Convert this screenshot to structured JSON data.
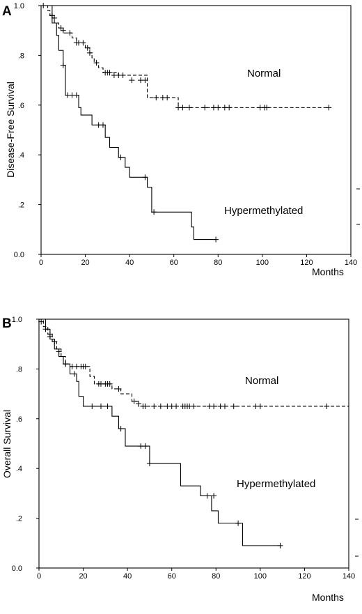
{
  "chart_data": [
    {
      "type": "line",
      "subtype": "kaplan-meier step",
      "panel_label": "A",
      "ylabel": "Disease-Free Survival",
      "xlabel": "Months",
      "xlim": [
        0,
        140
      ],
      "ylim": [
        0,
        1
      ],
      "xticks": [
        "0",
        "20",
        "40",
        "60",
        "80",
        "100",
        "120",
        "140"
      ],
      "yticks": [
        "0.0",
        ".2",
        ".4",
        ".6",
        ".8",
        "1.0"
      ],
      "grid": false,
      "series": [
        {
          "name": "Normal",
          "line_style": "dashed",
          "steps": [
            [
              0,
              1.0
            ],
            [
              3,
              0.98
            ],
            [
              4,
              0.96
            ],
            [
              5,
              0.95
            ],
            [
              6,
              0.93
            ],
            [
              8,
              0.91
            ],
            [
              10,
              0.89
            ],
            [
              14,
              0.87
            ],
            [
              16,
              0.85
            ],
            [
              20,
              0.83
            ],
            [
              22,
              0.81
            ],
            [
              23,
              0.79
            ],
            [
              24,
              0.77
            ],
            [
              26,
              0.75
            ],
            [
              28,
              0.73
            ],
            [
              35,
              0.72
            ],
            [
              48,
              0.63
            ],
            [
              62,
              0.59
            ],
            [
              130,
              0.59
            ]
          ],
          "censored": [
            [
              1,
              1.0
            ],
            [
              5,
              0.96
            ],
            [
              6,
              0.95
            ],
            [
              9,
              0.91
            ],
            [
              10,
              0.9
            ],
            [
              13,
              0.89
            ],
            [
              16,
              0.85
            ],
            [
              17,
              0.85
            ],
            [
              19,
              0.85
            ],
            [
              21,
              0.83
            ],
            [
              22,
              0.81
            ],
            [
              25,
              0.77
            ],
            [
              29,
              0.73
            ],
            [
              30,
              0.73
            ],
            [
              31,
              0.73
            ],
            [
              33,
              0.72
            ],
            [
              35,
              0.72
            ],
            [
              37,
              0.72
            ],
            [
              41,
              0.7
            ],
            [
              45,
              0.7
            ],
            [
              47,
              0.7
            ],
            [
              52,
              0.63
            ],
            [
              55,
              0.63
            ],
            [
              57,
              0.63
            ],
            [
              62,
              0.59
            ],
            [
              64,
              0.59
            ],
            [
              67,
              0.59
            ],
            [
              74,
              0.59
            ],
            [
              78,
              0.59
            ],
            [
              80,
              0.59
            ],
            [
              83,
              0.59
            ],
            [
              85,
              0.59
            ],
            [
              99,
              0.59
            ],
            [
              101,
              0.59
            ],
            [
              102,
              0.59
            ],
            [
              130,
              0.59
            ]
          ]
        },
        {
          "name": "Hypermethylated",
          "line_style": "solid",
          "steps": [
            [
              0,
              1.0
            ],
            [
              5,
              0.93
            ],
            [
              7,
              0.88
            ],
            [
              8,
              0.82
            ],
            [
              10,
              0.76
            ],
            [
              11,
              0.64
            ],
            [
              17,
              0.59
            ],
            [
              18,
              0.56
            ],
            [
              23,
              0.52
            ],
            [
              27,
              0.52
            ],
            [
              29,
              0.47
            ],
            [
              31,
              0.43
            ],
            [
              35,
              0.39
            ],
            [
              38,
              0.35
            ],
            [
              40,
              0.31
            ],
            [
              48,
              0.27
            ],
            [
              50,
              0.17
            ],
            [
              68,
              0.11
            ],
            [
              69,
              0.06
            ],
            [
              79,
              0.06
            ]
          ],
          "censored": [
            [
              5,
              0.96
            ],
            [
              10,
              0.76
            ],
            [
              12,
              0.64
            ],
            [
              14,
              0.64
            ],
            [
              16,
              0.64
            ],
            [
              26,
              0.52
            ],
            [
              28,
              0.52
            ],
            [
              36,
              0.39
            ],
            [
              47,
              0.31
            ],
            [
              51,
              0.17
            ],
            [
              79,
              0.06
            ]
          ]
        }
      ],
      "annotations": [
        "Normal",
        "Hypermethylated"
      ]
    },
    {
      "type": "line",
      "subtype": "kaplan-meier step",
      "panel_label": "B",
      "ylabel": "Overall Survival",
      "xlabel": "Months",
      "xlim": [
        0,
        140
      ],
      "ylim": [
        0,
        1
      ],
      "xticks": [
        "0",
        "20",
        "40",
        "60",
        "80",
        "100",
        "120",
        "140"
      ],
      "yticks": [
        "0.0",
        ".2",
        ".4",
        ".6",
        ".8",
        "1.0"
      ],
      "grid": false,
      "series": [
        {
          "name": "Normal",
          "line_style": "dashed",
          "steps": [
            [
              0,
              1.0
            ],
            [
              2,
              0.97
            ],
            [
              4,
              0.94
            ],
            [
              6,
              0.91
            ],
            [
              8,
              0.88
            ],
            [
              10,
              0.85
            ],
            [
              12,
              0.82
            ],
            [
              14,
              0.81
            ],
            [
              23,
              0.77
            ],
            [
              25,
              0.74
            ],
            [
              33,
              0.72
            ],
            [
              37,
              0.7
            ],
            [
              42,
              0.67
            ],
            [
              45,
              0.65
            ],
            [
              140,
              0.65
            ]
          ],
          "censored": [
            [
              1,
              0.99
            ],
            [
              3,
              0.96
            ],
            [
              5,
              0.94
            ],
            [
              7,
              0.91
            ],
            [
              9,
              0.87
            ],
            [
              12,
              0.82
            ],
            [
              15,
              0.81
            ],
            [
              17,
              0.81
            ],
            [
              19,
              0.81
            ],
            [
              20,
              0.81
            ],
            [
              21,
              0.81
            ],
            [
              27,
              0.74
            ],
            [
              28,
              0.74
            ],
            [
              30,
              0.74
            ],
            [
              31,
              0.74
            ],
            [
              32,
              0.74
            ],
            [
              36,
              0.72
            ],
            [
              43,
              0.67
            ],
            [
              45,
              0.66
            ],
            [
              47,
              0.65
            ],
            [
              48,
              0.65
            ],
            [
              52,
              0.65
            ],
            [
              55,
              0.65
            ],
            [
              58,
              0.65
            ],
            [
              60,
              0.65
            ],
            [
              62,
              0.65
            ],
            [
              65,
              0.65
            ],
            [
              66,
              0.65
            ],
            [
              67,
              0.65
            ],
            [
              68,
              0.65
            ],
            [
              70,
              0.65
            ],
            [
              77,
              0.65
            ],
            [
              79,
              0.65
            ],
            [
              82,
              0.65
            ],
            [
              84,
              0.65
            ],
            [
              88,
              0.65
            ],
            [
              98,
              0.65
            ],
            [
              100,
              0.65
            ],
            [
              130,
              0.65
            ]
          ]
        },
        {
          "name": "Hypermethylated",
          "line_style": "solid",
          "steps": [
            [
              0,
              1.0
            ],
            [
              3,
              0.96
            ],
            [
              5,
              0.92
            ],
            [
              7,
              0.88
            ],
            [
              9,
              0.85
            ],
            [
              11,
              0.82
            ],
            [
              14,
              0.78
            ],
            [
              17,
              0.75
            ],
            [
              18,
              0.69
            ],
            [
              20,
              0.65
            ],
            [
              33,
              0.61
            ],
            [
              36,
              0.56
            ],
            [
              39,
              0.49
            ],
            [
              50,
              0.42
            ],
            [
              64,
              0.33
            ],
            [
              73,
              0.29
            ],
            [
              78,
              0.23
            ],
            [
              81,
              0.18
            ],
            [
              92,
              0.09
            ],
            [
              109,
              0.09
            ]
          ],
          "censored": [
            [
              5,
              0.93
            ],
            [
              12,
              0.82
            ],
            [
              16,
              0.78
            ],
            [
              24,
              0.65
            ],
            [
              28,
              0.65
            ],
            [
              31,
              0.65
            ],
            [
              37,
              0.56
            ],
            [
              46,
              0.49
            ],
            [
              48,
              0.49
            ],
            [
              50,
              0.42
            ],
            [
              76,
              0.29
            ],
            [
              79,
              0.29
            ],
            [
              90,
              0.18
            ],
            [
              109,
              0.09
            ]
          ]
        }
      ],
      "annotations": [
        "Normal",
        "Hypermethylated"
      ]
    }
  ]
}
